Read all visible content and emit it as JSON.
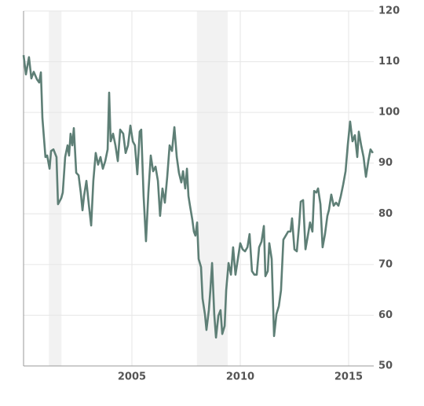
{
  "chart_data": {
    "type": "line",
    "x": [
      2000.0,
      2000.11,
      2000.25,
      2000.36,
      2000.47,
      2000.62,
      2000.72,
      2000.8,
      2000.87,
      2001.01,
      2001.09,
      2001.2,
      2001.27,
      2001.38,
      2001.52,
      2001.59,
      2001.74,
      2001.81,
      2001.92,
      2002.03,
      2002.1,
      2002.17,
      2002.25,
      2002.32,
      2002.43,
      2002.54,
      2002.64,
      2002.72,
      2002.79,
      2002.9,
      2003.01,
      2003.12,
      2003.22,
      2003.33,
      2003.44,
      2003.55,
      2003.66,
      2003.77,
      2003.88,
      2003.95,
      2004.02,
      2004.13,
      2004.24,
      2004.35,
      2004.46,
      2004.6,
      2004.71,
      2004.82,
      2004.93,
      2005.04,
      2005.14,
      2005.25,
      2005.36,
      2005.43,
      2005.54,
      2005.65,
      2005.76,
      2005.87,
      2005.98,
      2006.09,
      2006.2,
      2006.3,
      2006.41,
      2006.52,
      2006.63,
      2006.74,
      2006.85,
      2006.96,
      2007.07,
      2007.17,
      2007.28,
      2007.36,
      2007.46,
      2007.54,
      2007.61,
      2007.68,
      2007.79,
      2007.86,
      2007.93,
      2008.01,
      2008.08,
      2008.19,
      2008.26,
      2008.37,
      2008.44,
      2008.55,
      2008.62,
      2008.7,
      2008.8,
      2008.88,
      2008.99,
      2009.09,
      2009.17,
      2009.28,
      2009.35,
      2009.46,
      2009.57,
      2009.67,
      2009.78,
      2009.89,
      2010.0,
      2010.11,
      2010.22,
      2010.33,
      2010.43,
      2010.54,
      2010.65,
      2010.76,
      2010.87,
      2010.98,
      2011.09,
      2011.16,
      2011.27,
      2011.34,
      2011.45,
      2011.56,
      2011.67,
      2011.78,
      2011.88,
      2011.99,
      2012.1,
      2012.21,
      2012.32,
      2012.39,
      2012.5,
      2012.61,
      2012.72,
      2012.79,
      2012.9,
      2013.01,
      2013.12,
      2013.22,
      2013.33,
      2013.41,
      2013.51,
      2013.59,
      2013.7,
      2013.8,
      2013.91,
      2014.02,
      2014.09,
      2014.2,
      2014.31,
      2014.42,
      2014.53,
      2014.64,
      2014.75,
      2014.86,
      2014.96,
      2015.07,
      2015.18,
      2015.29,
      2015.4,
      2015.47,
      2015.58,
      2015.69,
      2015.8,
      2015.91,
      2016.01,
      2016.12
    ],
    "series": [
      {
        "color": "#5e7f76",
        "values": [
          111.3,
          107.5,
          110.9,
          106.7,
          108,
          106.5,
          105.9,
          107.9,
          98.9,
          91.2,
          91.5,
          88.9,
          92.4,
          92.7,
          91.2,
          81.9,
          83.1,
          84.2,
          91.2,
          93.5,
          91.5,
          95.8,
          93.5,
          96.9,
          88.1,
          87.6,
          84.2,
          80.7,
          83.5,
          86.5,
          81.9,
          77.7,
          86.5,
          92,
          89.7,
          91.2,
          88.9,
          90.4,
          92.7,
          103.9,
          94.3,
          95.8,
          93.5,
          90.4,
          96.6,
          95.8,
          92,
          93.5,
          97.4,
          94.3,
          93.5,
          87.8,
          96.2,
          96.6,
          83.5,
          74.6,
          84.2,
          91.5,
          88.4,
          89.3,
          86.5,
          79.6,
          85,
          82.2,
          87.3,
          93.5,
          92.4,
          97.1,
          91.2,
          88.1,
          86.2,
          88.4,
          85,
          88.9,
          83.5,
          81.6,
          78.8,
          76.5,
          75.7,
          78.3,
          71.1,
          69.5,
          63.3,
          60.2,
          57.1,
          61,
          64.9,
          70.3,
          60.2,
          55.6,
          59.9,
          61,
          56.3,
          57.9,
          64.9,
          70.3,
          68,
          73.4,
          68,
          71.1,
          74.2,
          73,
          72.6,
          73.4,
          76,
          68.7,
          68,
          68,
          73.4,
          74.5,
          77.6,
          67.7,
          68.7,
          74.2,
          71.1,
          55.9,
          60.2,
          61.8,
          64.9,
          74.9,
          75.7,
          76.5,
          76.5,
          79.1,
          73,
          72.6,
          78,
          82.4,
          82.7,
          73,
          75.7,
          78.3,
          76.5,
          84.5,
          84.2,
          85,
          81.9,
          73.4,
          76,
          79.6,
          80.7,
          83.8,
          81.6,
          82.2,
          81.6,
          83.5,
          85.8,
          88.4,
          93.5,
          98.2,
          94.3,
          95.5,
          91.2,
          96.2,
          93.5,
          91.2,
          87.3,
          90.4,
          92.7,
          92
        ]
      }
    ],
    "xlim": [
      2000,
      2016.16
    ],
    "xticks": [
      2005,
      2010,
      2015
    ],
    "ylim": [
      50,
      120
    ],
    "yticks": [
      50,
      60,
      70,
      80,
      90,
      100,
      110,
      120
    ],
    "recessions": [
      [
        2001.17,
        2001.75
      ],
      [
        2008.0,
        2009.42
      ]
    ],
    "grid": true
  }
}
